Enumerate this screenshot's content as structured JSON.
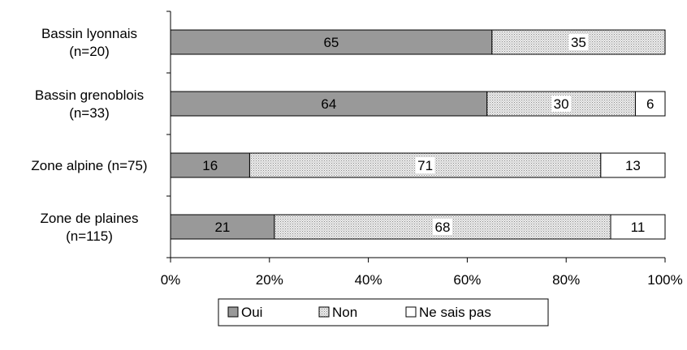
{
  "chart_data": {
    "type": "bar",
    "orientation": "horizontal",
    "stacked": "percent",
    "categories": [
      [
        "Bassin lyonnais",
        "(n=20)"
      ],
      [
        "Bassin grenoblois",
        "(n=33)"
      ],
      [
        "Zone alpine (n=75)"
      ],
      [
        "Zone de plaines",
        "(n=115)"
      ]
    ],
    "series": [
      {
        "name": "Oui",
        "values": [
          65,
          64,
          16,
          21
        ],
        "color": "#999999",
        "pattern": "solid"
      },
      {
        "name": "Non",
        "values": [
          35,
          30,
          71,
          68
        ],
        "color": "#e4e4e4",
        "pattern": "dotted"
      },
      {
        "name": "Ne sais pas",
        "values": [
          0,
          6,
          13,
          11
        ],
        "color": "#ffffff",
        "pattern": "none"
      }
    ],
    "xlim": [
      0,
      100
    ],
    "xticks": [
      "0%",
      "20%",
      "40%",
      "60%",
      "80%",
      "100%"
    ],
    "grid": false,
    "legend": "bottom"
  }
}
